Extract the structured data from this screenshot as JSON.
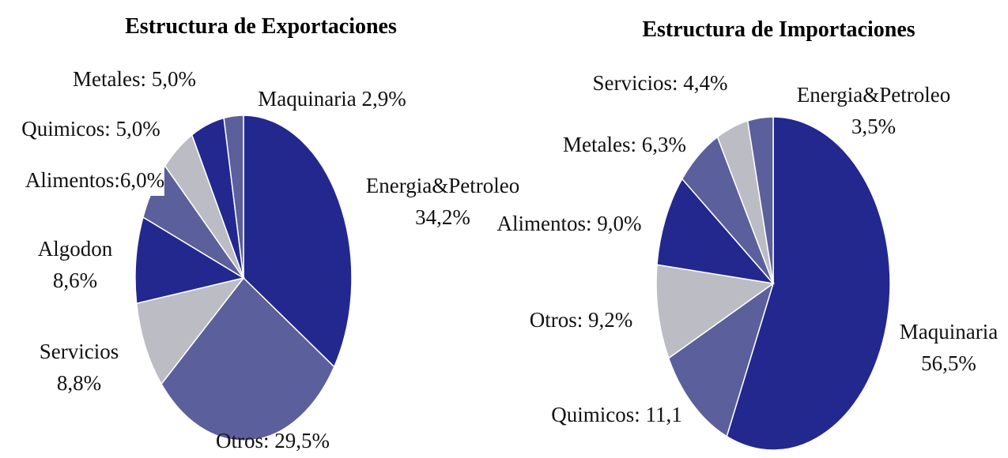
{
  "chart_data": [
    {
      "type": "pie",
      "title": "Estructura de Exportaciones",
      "categories": [
        "Energia&Petroleo",
        "Otros",
        "Servicios",
        "Algodon",
        "Alimentos",
        "Quimicos",
        "Metales",
        "Maquinaria"
      ],
      "values": [
        34.2,
        29.5,
        8.8,
        8.6,
        6.0,
        5.0,
        5.0,
        2.9
      ],
      "value_labels": [
        "Energia&Petroleo\n34,2%",
        "Otros: 29,5%",
        "Servicios\n8,8%",
        "Algodon\n8,6%",
        "Alimentos:6,0%",
        "Quimicos: 5,0%",
        "Metales: 5,0%",
        "Maquinaria 2,9%"
      ],
      "colors": [
        "#23288f",
        "#5b5f9b",
        "#bcbcc4",
        "#23288f",
        "#5b5f9b",
        "#bcbcc4",
        "#23288f",
        "#5b5f9b"
      ]
    },
    {
      "type": "pie",
      "title": "Estructura de Importaciones",
      "categories": [
        "Maquinaria",
        "Quimicos",
        "Otros",
        "Alimentos",
        "Metales",
        "Servicios",
        "Energia&Petroleo"
      ],
      "values": [
        56.5,
        11.1,
        9.2,
        9.0,
        6.3,
        4.4,
        3.5
      ],
      "value_labels": [
        "Maquinaria\n56,5%",
        "Quimicos: 11,1",
        "Otros: 9,2%",
        "Alimentos: 9,0%",
        "Metales: 6,3%",
        "Servicios: 4,4%",
        "Energia&Petroleo\n3,5%"
      ],
      "colors": [
        "#23288f",
        "#5b5f9b",
        "#bcbcc4",
        "#23288f",
        "#5b5f9b",
        "#bcbcc4",
        "#5b5f9b"
      ]
    }
  ]
}
